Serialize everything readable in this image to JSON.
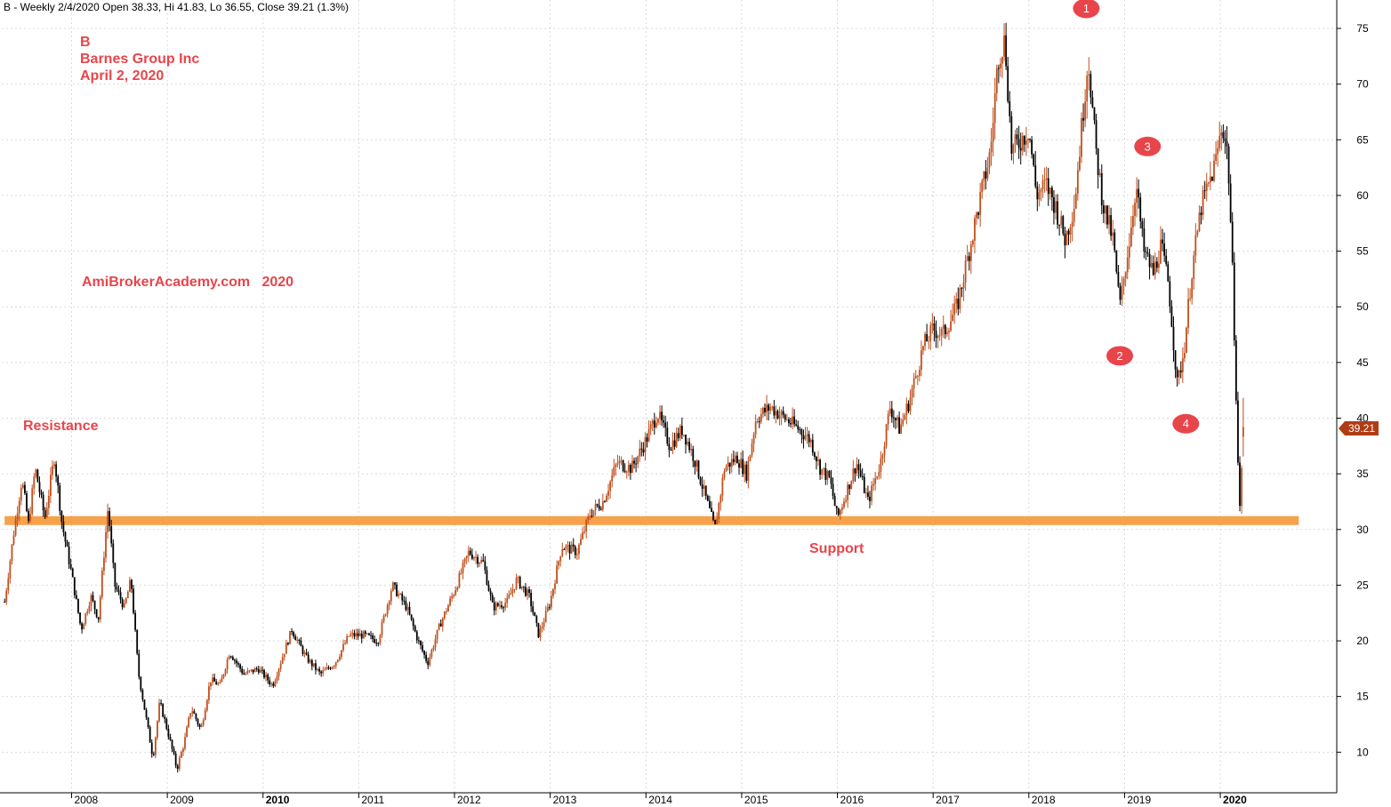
{
  "header": {
    "text": "B - Weekly 2/4/2020 Open 38.33, Hi 41.83, Lo 36.55, Close 39.21 (1.3%)"
  },
  "annotations": {
    "ticker": "B",
    "company": "Barnes Group Inc",
    "date": "April 2, 2020",
    "watermark": "AmiBrokerAcademy.com   2020",
    "resistance": "Resistance",
    "support": "Support"
  },
  "last_price": "39.21",
  "colors": {
    "up": "#c0501e",
    "down": "#000000",
    "support_line": "#f7a14a",
    "annotation": "#e8454b",
    "price_tag": "#b03c14"
  },
  "chart_data": {
    "type": "candlestick",
    "interval": "weekly",
    "price_axis_side": "right",
    "ylim": [
      6,
      78
    ],
    "yticks": [
      10,
      15,
      20,
      25,
      30,
      35,
      40,
      45,
      50,
      55,
      60,
      65,
      70,
      75
    ],
    "xlim": [
      2007.3,
      2020.7
    ],
    "xticks": [
      {
        "year": 2008,
        "label": "2008",
        "bold": false
      },
      {
        "year": 2009,
        "label": "2009",
        "bold": false
      },
      {
        "year": 2010,
        "label": "2010",
        "bold": true
      },
      {
        "year": 2011,
        "label": "2011",
        "bold": false
      },
      {
        "year": 2012,
        "label": "2012",
        "bold": false
      },
      {
        "year": 2013,
        "label": "2013",
        "bold": false
      },
      {
        "year": 2014,
        "label": "2014",
        "bold": false
      },
      {
        "year": 2015,
        "label": "2015",
        "bold": false
      },
      {
        "year": 2016,
        "label": "2016",
        "bold": false
      },
      {
        "year": 2017,
        "label": "2017",
        "bold": false
      },
      {
        "year": 2018,
        "label": "2018",
        "bold": false
      },
      {
        "year": 2019,
        "label": "2019",
        "bold": false
      },
      {
        "year": 2020,
        "label": "2020",
        "bold": true
      }
    ],
    "price_path": [
      [
        2007.3,
        23.5
      ],
      [
        2007.4,
        30.0
      ],
      [
        2007.48,
        34.5
      ],
      [
        2007.55,
        30.5
      ],
      [
        2007.62,
        35.5
      ],
      [
        2007.72,
        31.0
      ],
      [
        2007.82,
        36.5
      ],
      [
        2007.9,
        30.5
      ],
      [
        2008.0,
        26.0
      ],
      [
        2008.1,
        21.0
      ],
      [
        2008.2,
        24.0
      ],
      [
        2008.28,
        22.0
      ],
      [
        2008.38,
        32.0
      ],
      [
        2008.45,
        25.0
      ],
      [
        2008.55,
        23.0
      ],
      [
        2008.62,
        25.5
      ],
      [
        2008.7,
        17.0
      ],
      [
        2008.78,
        13.0
      ],
      [
        2008.85,
        9.5
      ],
      [
        2008.92,
        14.5
      ],
      [
        2009.0,
        12.0
      ],
      [
        2009.1,
        8.5
      ],
      [
        2009.18,
        11.0
      ],
      [
        2009.25,
        14.0
      ],
      [
        2009.35,
        12.0
      ],
      [
        2009.45,
        16.5
      ],
      [
        2009.55,
        16.0
      ],
      [
        2009.65,
        19.0
      ],
      [
        2009.8,
        17.0
      ],
      [
        2009.95,
        17.5
      ],
      [
        2010.1,
        16.0
      ],
      [
        2010.3,
        21.0
      ],
      [
        2010.45,
        18.5
      ],
      [
        2010.6,
        17.0
      ],
      [
        2010.75,
        18.0
      ],
      [
        2010.9,
        20.5
      ],
      [
        2011.05,
        20.5
      ],
      [
        2011.2,
        20.0
      ],
      [
        2011.35,
        25.0
      ],
      [
        2011.5,
        23.0
      ],
      [
        2011.62,
        20.0
      ],
      [
        2011.72,
        18.0
      ],
      [
        2011.85,
        21.5
      ],
      [
        2012.0,
        24.5
      ],
      [
        2012.15,
        28.0
      ],
      [
        2012.3,
        27.0
      ],
      [
        2012.4,
        23.0
      ],
      [
        2012.55,
        23.5
      ],
      [
        2012.65,
        25.5
      ],
      [
        2012.78,
        24.0
      ],
      [
        2012.88,
        20.5
      ],
      [
        2013.0,
        23.5
      ],
      [
        2013.12,
        28.5
      ],
      [
        2013.28,
        28.0
      ],
      [
        2013.42,
        31.5
      ],
      [
        2013.55,
        32.5
      ],
      [
        2013.7,
        36.0
      ],
      [
        2013.85,
        35.5
      ],
      [
        2014.0,
        38.0
      ],
      [
        2014.12,
        40.5
      ],
      [
        2014.25,
        37.5
      ],
      [
        2014.38,
        39.0
      ],
      [
        2014.5,
        36.5
      ],
      [
        2014.62,
        33.0
      ],
      [
        2014.72,
        30.0
      ],
      [
        2014.82,
        35.5
      ],
      [
        2014.95,
        36.5
      ],
      [
        2015.05,
        35.0
      ],
      [
        2015.15,
        40.0
      ],
      [
        2015.3,
        41.0
      ],
      [
        2015.45,
        40.0
      ],
      [
        2015.6,
        39.0
      ],
      [
        2015.72,
        38.0
      ],
      [
        2015.82,
        35.5
      ],
      [
        2015.92,
        34.5
      ],
      [
        2016.0,
        31.0
      ],
      [
        2016.1,
        33.5
      ],
      [
        2016.2,
        36.0
      ],
      [
        2016.32,
        32.5
      ],
      [
        2016.45,
        36.0
      ],
      [
        2016.55,
        41.0
      ],
      [
        2016.65,
        39.0
      ],
      [
        2016.75,
        41.5
      ],
      [
        2016.9,
        46.5
      ],
      [
        2017.0,
        48.0
      ],
      [
        2017.1,
        47.5
      ],
      [
        2017.25,
        50.0
      ],
      [
        2017.4,
        56.0
      ],
      [
        2017.5,
        60.0
      ],
      [
        2017.6,
        64.0
      ],
      [
        2017.68,
        72.5
      ],
      [
        2017.75,
        74.0
      ],
      [
        2017.82,
        64.0
      ],
      [
        2017.92,
        65.0
      ],
      [
        2018.0,
        66.0
      ],
      [
        2018.08,
        60.0
      ],
      [
        2018.18,
        61.0
      ],
      [
        2018.28,
        59.0
      ],
      [
        2018.38,
        56.0
      ],
      [
        2018.48,
        59.5
      ],
      [
        2018.55,
        66.0
      ],
      [
        2018.62,
        72.5
      ],
      [
        2018.7,
        64.0
      ],
      [
        2018.78,
        59.0
      ],
      [
        2018.88,
        56.0
      ],
      [
        2018.95,
        50.0
      ],
      [
        2019.05,
        56.0
      ],
      [
        2019.12,
        61.0
      ],
      [
        2019.2,
        55.0
      ],
      [
        2019.3,
        53.0
      ],
      [
        2019.38,
        55.5
      ],
      [
        2019.46,
        52.0
      ],
      [
        2019.55,
        43.0
      ],
      [
        2019.62,
        46.0
      ],
      [
        2019.7,
        53.0
      ],
      [
        2019.8,
        59.0
      ],
      [
        2019.88,
        61.0
      ],
      [
        2019.95,
        63.0
      ],
      [
        2020.02,
        66.5
      ],
      [
        2020.08,
        63.5
      ],
      [
        2020.12,
        55.0
      ],
      [
        2020.16,
        44.0
      ],
      [
        2020.2,
        31.0
      ],
      [
        2020.24,
        39.2
      ]
    ],
    "latest_bar": {
      "date": "2/4/2020",
      "open": 38.33,
      "high": 41.83,
      "low": 36.55,
      "close": 39.21,
      "change_pct": 1.3
    },
    "support_level": 30.8,
    "support_range": [
      2007.3,
      2020.82
    ],
    "labels": {
      "resistance": "Resistance",
      "support": "Support"
    },
    "markers": [
      {
        "label": "1",
        "x": 2018.6,
        "y": 76.8
      },
      {
        "label": "2",
        "x": 2018.95,
        "y": 45.6
      },
      {
        "label": "3",
        "x": 2019.24,
        "y": 64.4
      },
      {
        "label": "4",
        "x": 2019.64,
        "y": 39.5
      }
    ]
  }
}
